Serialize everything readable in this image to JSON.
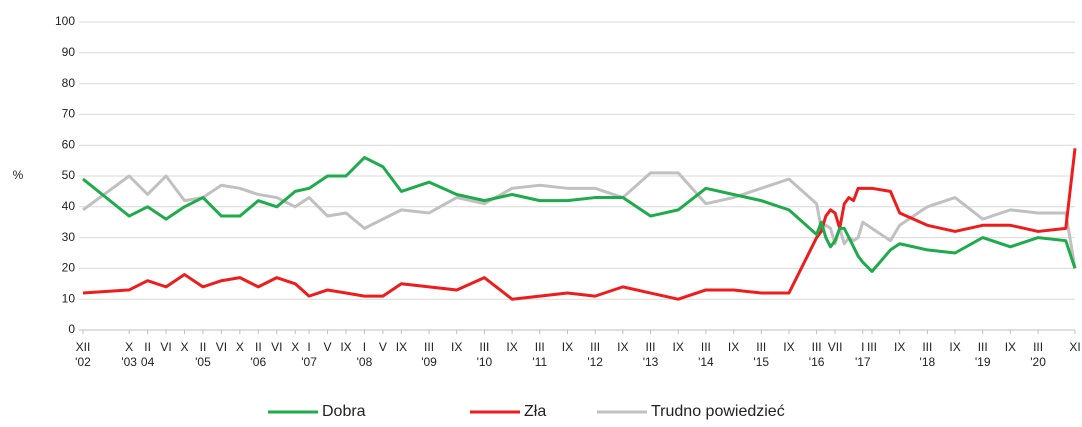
{
  "chart_data": {
    "type": "line",
    "y_label": "%",
    "x": [
      "2002-12",
      "2003-10",
      "2004-02",
      "2004-06",
      "2004-10",
      "2005-02",
      "2005-06",
      "2005-10",
      "2006-02",
      "2006-06",
      "2006-10",
      "2007-01",
      "2007-05",
      "2007-09",
      "2008-01",
      "2008-05",
      "2008-09",
      "2009-03",
      "2009-09",
      "2010-03",
      "2010-09",
      "2011-03",
      "2011-09",
      "2012-03",
      "2012-09",
      "2013-03",
      "2013-09",
      "2014-03",
      "2014-09",
      "2015-03",
      "2015-09",
      "2016-03",
      "2016-04",
      "2016-05",
      "2016-06",
      "2016-07",
      "2016-08",
      "2016-09",
      "2016-10",
      "2016-11",
      "2016-12",
      "2017-01",
      "2017-03",
      "2017-07",
      "2017-09",
      "2018-03",
      "2018-09",
      "2019-03",
      "2019-09",
      "2020-03",
      "2020-09",
      "2020-11"
    ],
    "series": [
      {
        "name": "Dobra",
        "color": "#1faa4b",
        "values": [
          49,
          37,
          40,
          36,
          40,
          43,
          37,
          37,
          42,
          40,
          45,
          46,
          50,
          50,
          56,
          53,
          45,
          48,
          44,
          42,
          44,
          42,
          42,
          43,
          43,
          37,
          39,
          46,
          44,
          42,
          39,
          31,
          35,
          30,
          27,
          29,
          33,
          33,
          30,
          27,
          24,
          22,
          19,
          26,
          28,
          26,
          25,
          30,
          27,
          30,
          29,
          20
        ]
      },
      {
        "name": "Zła",
        "color": "#ee1c1c",
        "values": [
          12,
          13,
          16,
          14,
          18,
          14,
          16,
          17,
          14,
          17,
          15,
          11,
          13,
          12,
          11,
          11,
          15,
          14,
          13,
          17,
          10,
          11,
          12,
          11,
          14,
          12,
          10,
          13,
          13,
          12,
          12,
          30,
          32,
          37,
          39,
          38,
          33,
          41,
          43,
          42,
          46,
          46,
          46,
          45,
          38,
          34,
          32,
          34,
          34,
          32,
          33,
          59
        ]
      },
      {
        "name": "Trudno powiedzieć",
        "color": "#c0c0c0",
        "values": [
          39,
          50,
          44,
          50,
          42,
          43,
          47,
          46,
          44,
          43,
          40,
          43,
          37,
          38,
          33,
          36,
          39,
          38,
          43,
          41,
          46,
          47,
          46,
          46,
          43,
          51,
          51,
          41,
          43,
          46,
          49,
          41,
          33,
          34,
          33,
          28,
          33,
          28,
          30,
          29,
          30,
          35,
          33,
          29,
          34,
          40,
          43,
          36,
          39,
          38,
          38,
          20
        ]
      }
    ],
    "xlim": [
      "2002-12",
      "2020-11"
    ],
    "xticks": [
      {
        "value": "2002-12",
        "label": "XII"
      },
      {
        "value": "2003-10",
        "label": "X"
      },
      {
        "value": "2004-02",
        "label": "II"
      },
      {
        "value": "2004-06",
        "label": "VI"
      },
      {
        "value": "2004-10",
        "label": "X"
      },
      {
        "value": "2005-02",
        "label": "II"
      },
      {
        "value": "2005-06",
        "label": "VI"
      },
      {
        "value": "2005-10",
        "label": "X"
      },
      {
        "value": "2006-02",
        "label": "II"
      },
      {
        "value": "2006-06",
        "label": "VI"
      },
      {
        "value": "2006-10",
        "label": "X"
      },
      {
        "value": "2007-01",
        "label": "I"
      },
      {
        "value": "2007-05",
        "label": "V"
      },
      {
        "value": "2007-09",
        "label": "IX"
      },
      {
        "value": "2008-01",
        "label": "I"
      },
      {
        "value": "2008-05",
        "label": "V"
      },
      {
        "value": "2008-09",
        "label": "IX"
      },
      {
        "value": "2009-03",
        "label": "III"
      },
      {
        "value": "2009-09",
        "label": "IX"
      },
      {
        "value": "2010-03",
        "label": "III"
      },
      {
        "value": "2010-09",
        "label": "IX"
      },
      {
        "value": "2011-03",
        "label": "III"
      },
      {
        "value": "2011-09",
        "label": "IX"
      },
      {
        "value": "2012-03",
        "label": "III"
      },
      {
        "value": "2012-09",
        "label": "IX"
      },
      {
        "value": "2013-03",
        "label": "III"
      },
      {
        "value": "2013-09",
        "label": "IX"
      },
      {
        "value": "2014-03",
        "label": "III"
      },
      {
        "value": "2014-09",
        "label": "IX"
      },
      {
        "value": "2015-03",
        "label": "III"
      },
      {
        "value": "2015-09",
        "label": "IX"
      },
      {
        "value": "2016-03",
        "label": "III"
      },
      {
        "value": "2016-07",
        "label": "VII"
      },
      {
        "value": "2017-01",
        "label": "I"
      },
      {
        "value": "2017-03",
        "label": "III"
      },
      {
        "value": "2017-09",
        "label": "IX"
      },
      {
        "value": "2018-03",
        "label": "III"
      },
      {
        "value": "2018-09",
        "label": "IX"
      },
      {
        "value": "2019-03",
        "label": "III"
      },
      {
        "value": "2019-09",
        "label": "IX"
      },
      {
        "value": "2020-03",
        "label": "III"
      },
      {
        "value": "2020-11",
        "label": "XI"
      }
    ],
    "xtick_years": [
      {
        "value": "2002-12",
        "label": "'02"
      },
      {
        "value": "2003-10",
        "label": "'03"
      },
      {
        "value": "2004-02",
        "label": "04"
      },
      {
        "value": "2005-02",
        "label": "'05"
      },
      {
        "value": "2006-02",
        "label": "'06"
      },
      {
        "value": "2007-01",
        "label": "'07"
      },
      {
        "value": "2008-01",
        "label": "'08"
      },
      {
        "value": "2009-03",
        "label": "'09"
      },
      {
        "value": "2010-03",
        "label": "'10"
      },
      {
        "value": "2011-03",
        "label": "'11"
      },
      {
        "value": "2012-03",
        "label": "'12"
      },
      {
        "value": "2013-03",
        "label": "'13"
      },
      {
        "value": "2014-03",
        "label": "'14"
      },
      {
        "value": "2015-03",
        "label": "'15"
      },
      {
        "value": "2016-03",
        "label": "'16"
      },
      {
        "value": "2017-01",
        "label": "'17"
      },
      {
        "value": "2018-03",
        "label": "'18"
      },
      {
        "value": "2019-03",
        "label": "'19"
      },
      {
        "value": "2020-03",
        "label": "'20"
      }
    ],
    "ylim": [
      0,
      100
    ],
    "yticks": [
      0,
      10,
      20,
      30,
      40,
      50,
      60,
      70,
      80,
      90,
      100
    ],
    "grid": true,
    "legend": "bottom"
  }
}
